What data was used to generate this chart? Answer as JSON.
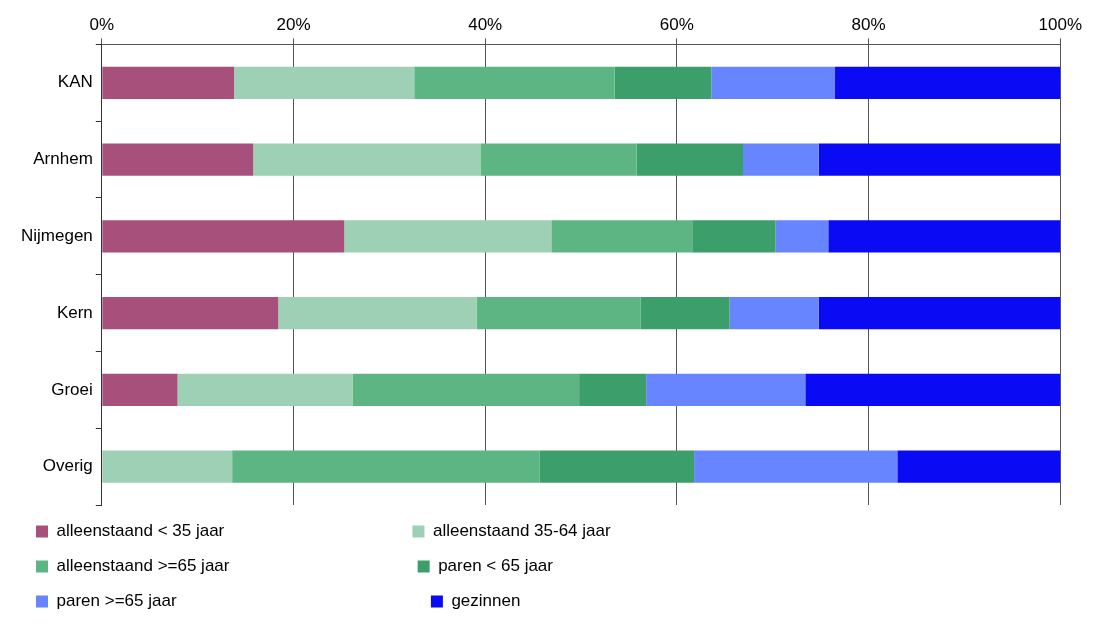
{
  "chart_data": {
    "type": "bar",
    "orientation": "horizontal",
    "stacked": true,
    "categories": [
      "KAN",
      "Arnhem",
      "Nijmegen",
      "Kern",
      "Groei",
      "Overig"
    ],
    "series": [
      {
        "name": "alleenstaand < 35 jaar",
        "color": "#a8507c",
        "values": [
          13.8,
          15.8,
          25.3,
          18.4,
          7.9,
          0
        ]
      },
      {
        "name": "alleenstaand 35-64 jaar",
        "color": "#9dd0b4",
        "values": [
          18.8,
          23.7,
          21.6,
          20.7,
          18.3,
          13.6
        ]
      },
      {
        "name": "alleenstaand >=65 jaar",
        "color": "#5db584",
        "values": [
          20.9,
          16.3,
          14.7,
          17.1,
          23.6,
          32.1
        ]
      },
      {
        "name": "paren < 65 jaar",
        "color": "#3c9e6a",
        "values": [
          10.1,
          11.1,
          8.7,
          9.3,
          7.0,
          16.1
        ]
      },
      {
        "name": "paren >=65 jaar",
        "color": "#6685ff",
        "values": [
          12.9,
          7.9,
          5.5,
          9.3,
          16.6,
          21.2
        ]
      },
      {
        "name": "gezinnen",
        "color": "#0a0af5",
        "values": [
          23.5,
          25.2,
          24.2,
          25.2,
          26.6,
          17.0
        ]
      }
    ],
    "xlim": [
      0,
      100
    ],
    "xticks": [
      {
        "value": 0,
        "label": "0%"
      },
      {
        "value": 20,
        "label": "20%"
      },
      {
        "value": 40,
        "label": "40%"
      },
      {
        "value": 60,
        "label": "60%"
      },
      {
        "value": 80,
        "label": "80%"
      },
      {
        "value": 100,
        "label": "100%"
      }
    ],
    "grid": "x",
    "legend": "bottom"
  }
}
